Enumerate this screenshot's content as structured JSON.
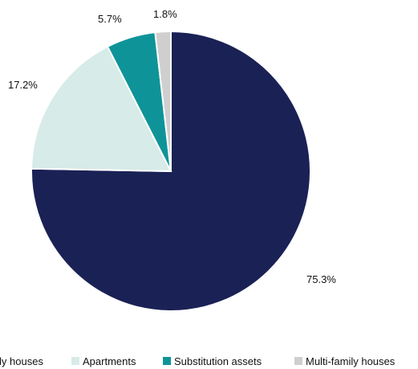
{
  "chart_data": {
    "type": "pie",
    "title": "",
    "series": [
      {
        "name": "Single-family houses",
        "value": 75.3,
        "label": "75.3%",
        "color": "#1a2155"
      },
      {
        "name": "Apartments",
        "value": 17.2,
        "label": "17.2%",
        "color": "#d7ebe8"
      },
      {
        "name": "Substitution assets",
        "value": 5.7,
        "label": "5.7%",
        "color": "#0e9498"
      },
      {
        "name": "Multi-family houses",
        "value": 1.8,
        "label": "1.8%",
        "color": "#cfcfcf"
      }
    ],
    "start_angle_deg": 90,
    "direction": "clockwise",
    "legend_position": "bottom"
  },
  "legend": {
    "items": [
      {
        "label": "Single-family houses",
        "color": "#1a2155"
      },
      {
        "label": "Apartments",
        "color": "#d7ebe8"
      },
      {
        "label": "Substitution assets",
        "color": "#0e9498"
      },
      {
        "label": "Multi-family houses",
        "color": "#cfcfcf"
      }
    ]
  }
}
